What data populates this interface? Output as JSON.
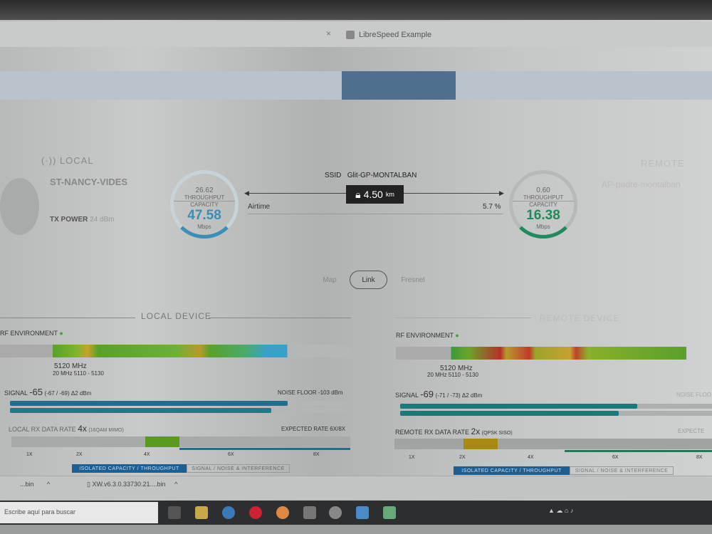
{
  "browser": {
    "tab_title": "LibreSpeed Example"
  },
  "local": {
    "heading": "LOCAL",
    "device_name": "ST-NANCY-VIDES",
    "tx_power_label": "TX POWER",
    "tx_power_value": "24 dBm",
    "gauge": {
      "throughput": "26.62",
      "throughput_label": "THROUGHPUT",
      "capacity_label": "CAPACITY",
      "capacity": "47.58",
      "unit": "Mbps"
    }
  },
  "link": {
    "ssid_label": "SSID",
    "ssid": "Glit-GP-MONTALBAN",
    "distance": "4.50",
    "distance_unit": "km",
    "airtime_label": "Airtime",
    "airtime": "5.7 %"
  },
  "remote": {
    "heading": "REMOTE",
    "device_name": "AP-padre-montalban",
    "gauge": {
      "throughput": "0.60",
      "throughput_label": "THROUGHPUT",
      "capacity_label": "CAPACITY",
      "capacity": "16.38",
      "unit": "Mbps"
    }
  },
  "view_tabs": [
    {
      "label": "Map"
    },
    {
      "label": "Link",
      "active": true
    },
    {
      "label": "Fresnel"
    }
  ],
  "local_device": {
    "title": "LOCAL DEVICE",
    "rf_label": "RF ENVIRONMENT",
    "freq": "5120 MHz",
    "freq_detail": "20 MHz 5110 - 5130",
    "signal_label": "SIGNAL",
    "signal": "-65",
    "signal_detail": "(-67 / -69) Δ2 dBm",
    "noise_floor": "NOISE FLOOR -103 dBm",
    "chain0_pct": 82,
    "chain1_pct": 77,
    "rate_label": "LOCAL RX DATA RATE",
    "rate": "4x",
    "rate_detail": "(16QAM MIMO)",
    "expected": "EXPECTED RATE 6X/8X",
    "ticks": [
      "1X",
      "2X",
      "4X",
      "6X",
      "8X"
    ],
    "btn_capacity": "ISOLATED CAPACITY / THROUGHPUT",
    "btn_signal": "SIGNAL / NOISE & INTERFERENCE"
  },
  "remote_device": {
    "title": "REMOTE DEVICE",
    "rf_label": "RF ENVIRONMENT",
    "freq": "5120 MHz",
    "freq_detail": "20 MHz 5110 - 5130",
    "signal_label": "SIGNAL",
    "signal": "-69",
    "signal_detail": "(-71 / -73) Δ2 dBm",
    "noise_floor": "NOISE FLOO",
    "chain0_pct": 76,
    "chain1_pct": 70,
    "rate_label": "REMOTE RX DATA RATE",
    "rate": "2x",
    "rate_detail": "(QPSK SISO)",
    "expected": "EXPECTE",
    "ticks": [
      "1X",
      "2X",
      "4X",
      "6X",
      "8X"
    ],
    "btn_capacity": "ISOLATED CAPACITY / THROUGHPUT",
    "btn_signal": "SIGNAL / NOISE & INTERFERENCE"
  },
  "downloads": [
    {
      "name": "...bin"
    },
    {
      "name": "XW.v6.3.0.33730.21....bin"
    }
  ],
  "taskbar": {
    "search_placeholder": "Escribe aquí para buscar"
  },
  "colors": {
    "accent": "#3a8fb7",
    "capacity_remote": "#1f8a5c",
    "signal_bar": "#1d6f8c",
    "rf_green": "#5aa02c"
  }
}
